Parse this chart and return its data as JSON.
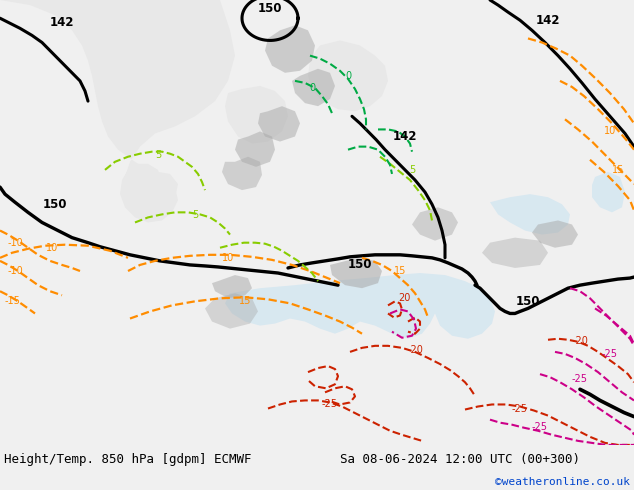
{
  "title_left": "Height/Temp. 850 hPa [gdpm] ECMWF",
  "title_right": "Sa 08-06-2024 12:00 UTC (00+300)",
  "copyright": "©weatheronline.co.uk",
  "fig_width": 6.34,
  "fig_height": 4.9,
  "dpi": 100,
  "bg_color": "#f0f0f0",
  "sea_color": "#e8e8e8",
  "land_green": "#c8f0a0",
  "land_light": "#d8f0b8",
  "gray_terrain": "#a8a8a8",
  "title_fontsize": 9.0,
  "copyright_fontsize": 8.0,
  "copyright_color": "#0044cc",
  "black_lw": 2.2,
  "orange_lw": 1.6,
  "green_lw": 1.5,
  "red_lw": 1.5,
  "magenta_lw": 1.5
}
